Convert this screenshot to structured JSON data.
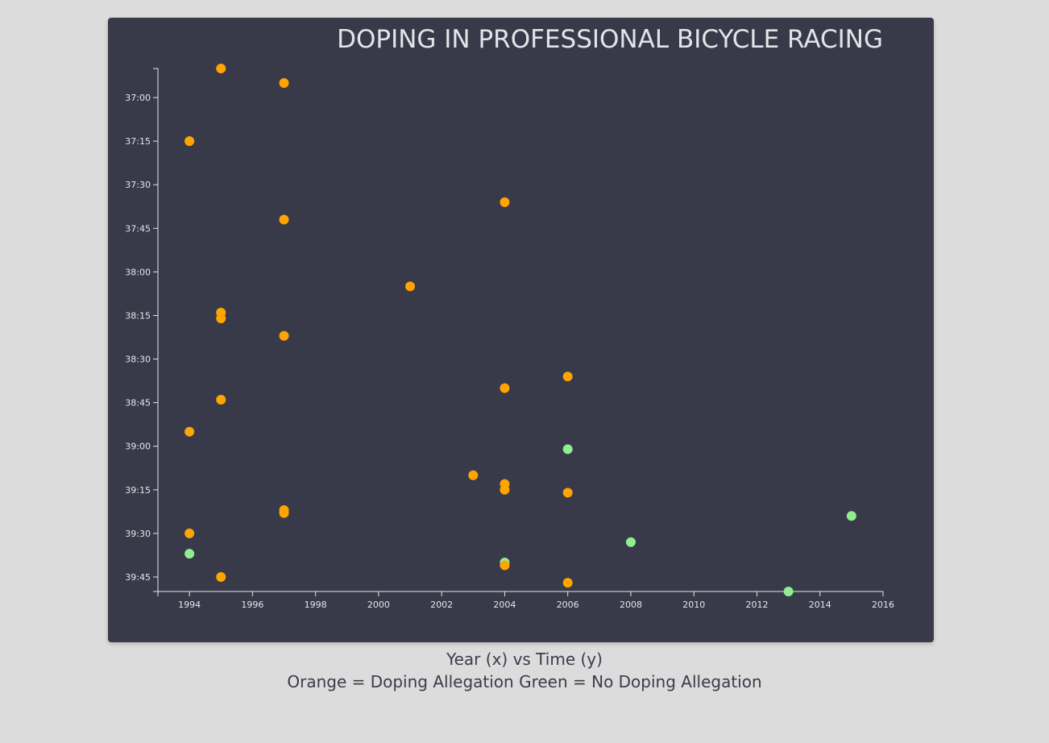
{
  "chart_data": {
    "type": "scatter",
    "title": "DOPING IN PROFESSIONAL BICYCLE RACING",
    "xlabel": "Year (x) vs Time (y)",
    "ylabel": "",
    "legend_text": "Orange = Doping Allegation Green = No Doping Allegation",
    "xlim": [
      1993,
      2016
    ],
    "ylim_seconds": [
      2210,
      2390
    ],
    "x_ticks": [
      1994,
      1996,
      1998,
      2000,
      2002,
      2004,
      2006,
      2008,
      2010,
      2012,
      2014,
      2016
    ],
    "y_ticks": [
      "37:00",
      "37:15",
      "37:30",
      "37:45",
      "38:00",
      "38:15",
      "38:30",
      "38:45",
      "39:00",
      "39:15",
      "39:30",
      "39:45"
    ],
    "colors": {
      "doping": "#ffa500",
      "no_doping": "#90ee90",
      "background": "#383a4a",
      "axis": "#e6e6ea"
    },
    "points": [
      {
        "year": 1995,
        "time": "36:50",
        "doping": true
      },
      {
        "year": 1997,
        "time": "36:55",
        "doping": true
      },
      {
        "year": 1994,
        "time": "37:15",
        "doping": true
      },
      {
        "year": 2004,
        "time": "37:36",
        "doping": true
      },
      {
        "year": 1997,
        "time": "37:42",
        "doping": true
      },
      {
        "year": 2001,
        "time": "38:05",
        "doping": true
      },
      {
        "year": 1995,
        "time": "38:14",
        "doping": true
      },
      {
        "year": 1995,
        "time": "38:16",
        "doping": true
      },
      {
        "year": 1997,
        "time": "38:22",
        "doping": true
      },
      {
        "year": 2006,
        "time": "38:36",
        "doping": true
      },
      {
        "year": 2004,
        "time": "38:40",
        "doping": true
      },
      {
        "year": 1995,
        "time": "38:44",
        "doping": true
      },
      {
        "year": 1994,
        "time": "38:55",
        "doping": true
      },
      {
        "year": 2006,
        "time": "39:01",
        "doping": false
      },
      {
        "year": 2003,
        "time": "39:10",
        "doping": true
      },
      {
        "year": 2004,
        "time": "39:13",
        "doping": true
      },
      {
        "year": 2004,
        "time": "39:15",
        "doping": true
      },
      {
        "year": 2006,
        "time": "39:16",
        "doping": true
      },
      {
        "year": 1997,
        "time": "39:22",
        "doping": true
      },
      {
        "year": 1997,
        "time": "39:23",
        "doping": true
      },
      {
        "year": 2015,
        "time": "39:24",
        "doping": false
      },
      {
        "year": 1994,
        "time": "39:30",
        "doping": true
      },
      {
        "year": 2008,
        "time": "39:33",
        "doping": false
      },
      {
        "year": 1994,
        "time": "39:37",
        "doping": false
      },
      {
        "year": 2004,
        "time": "39:40",
        "doping": false
      },
      {
        "year": 2004,
        "time": "39:41",
        "doping": true
      },
      {
        "year": 1995,
        "time": "39:45",
        "doping": true
      },
      {
        "year": 2006,
        "time": "39:47",
        "doping": true
      },
      {
        "year": 2013,
        "time": "39:50",
        "doping": false
      }
    ]
  }
}
